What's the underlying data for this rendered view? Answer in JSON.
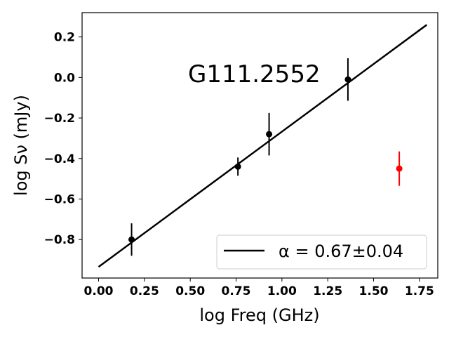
{
  "chart_data": {
    "type": "scatter",
    "title": "",
    "xlabel": "log Freq (GHz)",
    "ylabel": "log Sν (mJy)",
    "xlim": [
      -0.09,
      1.85
    ],
    "ylim": [
      -0.99,
      0.32
    ],
    "xticks": [
      "0.00",
      "0.25",
      "0.50",
      "0.75",
      "1.00",
      "1.25",
      "1.50",
      "1.75"
    ],
    "yticks": [
      "−0.8",
      "−0.6",
      "−0.4",
      "−0.2",
      "0.0",
      "0.2"
    ],
    "grid": false,
    "legend_position": "lower-right",
    "annotation": "G111.2552",
    "series": [
      {
        "kind": "points",
        "color": "#000000",
        "x": [
          0.18,
          0.76,
          0.93,
          1.36
        ],
        "y": [
          -0.8,
          -0.44,
          -0.28,
          -0.01
        ],
        "yerr": [
          0.08,
          0.045,
          0.105,
          0.105
        ]
      },
      {
        "kind": "points",
        "color": "#ff0000",
        "x": [
          1.64
        ],
        "y": [
          -0.45
        ],
        "yerr": [
          0.085
        ]
      },
      {
        "kind": "line",
        "name": "α = 0.67±0.04",
        "color": "#000000",
        "x": [
          0.0,
          1.79
        ],
        "y": [
          -0.935,
          0.26
        ]
      }
    ]
  }
}
